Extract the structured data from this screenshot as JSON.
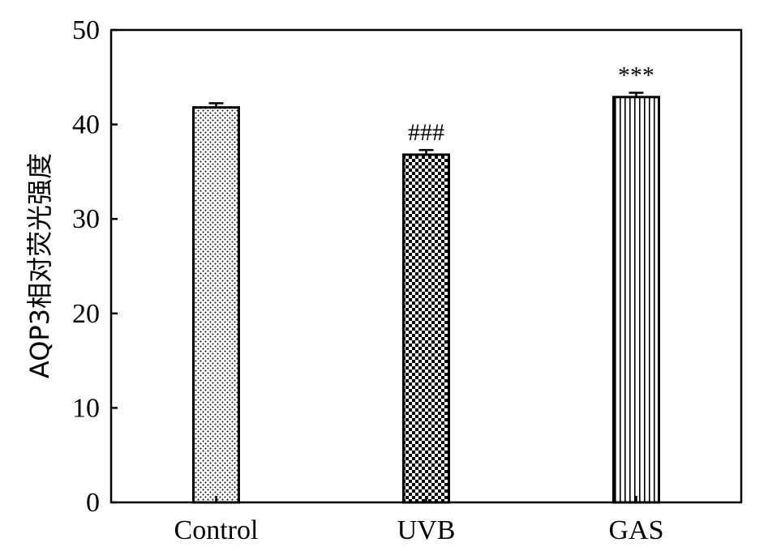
{
  "chart_data": {
    "type": "bar",
    "categories": [
      "Control",
      "UVB",
      "GAS"
    ],
    "values": [
      41.8,
      36.8,
      42.9
    ],
    "errors": [
      0.45,
      0.5,
      0.45
    ],
    "annotations": [
      "",
      "###",
      "***"
    ],
    "patterns": [
      "dots",
      "checker",
      "vertical-lines"
    ],
    "title": "",
    "xlabel": "",
    "ylabel": "AQP3相对荧光强度",
    "ylim": [
      0,
      50
    ],
    "yticks": [
      "0",
      "10",
      "20",
      "30",
      "40",
      "50"
    ],
    "grid": false,
    "legend": "none",
    "colors": {
      "bar_edge": "#000000",
      "fill": "#ffffff",
      "pattern": "#000000"
    }
  }
}
